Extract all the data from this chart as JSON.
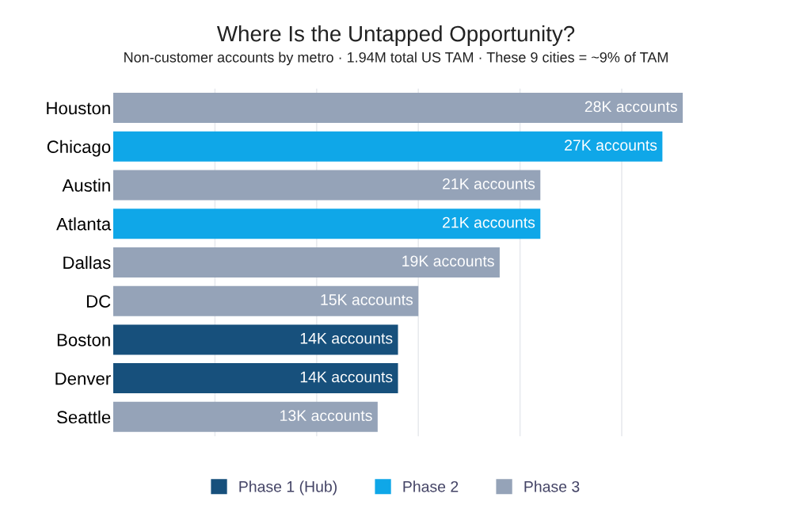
{
  "chart_data": {
    "type": "bar",
    "orientation": "horizontal",
    "title": "Where Is the Untapped Opportunity?",
    "subtitle": "Non-customer accounts by metro · 1.94M total US TAM · These 9 cities = ~9% of TAM",
    "categories": [
      "Houston",
      "Chicago",
      "Austin",
      "Atlanta",
      "Dallas",
      "DC",
      "Boston",
      "Denver",
      "Seattle"
    ],
    "series": [
      {
        "name": "Phase 1 (Hub)",
        "color": "#17507c",
        "values": [
          null,
          null,
          null,
          null,
          null,
          null,
          14,
          14,
          null
        ],
        "value_labels": [
          null,
          null,
          null,
          null,
          null,
          null,
          "14K accounts",
          "14K accounts",
          null
        ]
      },
      {
        "name": "Phase 2",
        "color": "#0fa7e8",
        "values": [
          null,
          27,
          null,
          21,
          null,
          null,
          null,
          null,
          null
        ],
        "value_labels": [
          null,
          "27K accounts",
          null,
          "21K accounts",
          null,
          null,
          null,
          null,
          null
        ]
      },
      {
        "name": "Phase 3",
        "color": "#95a3b8",
        "values": [
          28,
          null,
          21,
          null,
          19,
          15,
          null,
          null,
          13
        ],
        "value_labels": [
          "28K accounts",
          null,
          "21K accounts",
          null,
          "19K accounts",
          "15K accounts",
          null,
          null,
          "13K accounts"
        ]
      }
    ],
    "xticks": [
      {
        "value": 5,
        "label": null
      },
      {
        "value": 10,
        "label": null
      },
      {
        "value": 15,
        "label": null
      },
      {
        "value": 20,
        "label": null
      },
      {
        "value": 25,
        "label": null
      }
    ],
    "tick_labels": "y",
    "grid": "x",
    "legend": "bottom"
  }
}
